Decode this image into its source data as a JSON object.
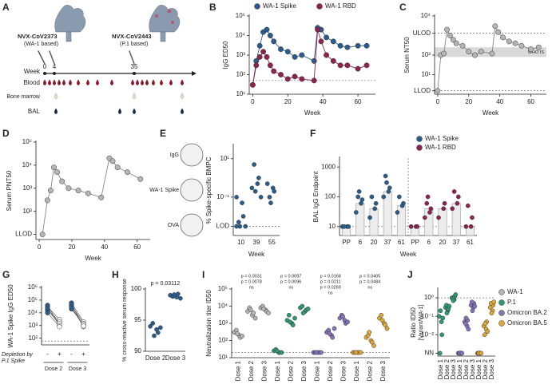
{
  "diagram": {
    "panel_label": "A",
    "vaccines": [
      {
        "name": "NVX-CoV2373",
        "basis": "(WA-1 based)"
      },
      {
        "name": "NVX-CoV2443",
        "basis": "(P.1 based)"
      }
    ],
    "timeline_label": "Week",
    "weeks": [
      "0",
      "4",
      "35"
    ],
    "samples": [
      "Blood",
      "Bone marrow",
      "BAL"
    ]
  },
  "chart_data": [
    {
      "type": "line",
      "panel_label": "B",
      "y_label": "IgG ED50",
      "x_label": "Week",
      "log_y": true,
      "xlim": [
        -2,
        70
      ],
      "xticks": [
        0,
        20,
        40,
        60
      ],
      "ylim": [
        10,
        100000
      ],
      "yticks": [
        {
          "value": 10,
          "label": "10¹"
        },
        {
          "value": 100,
          "label": "10²"
        },
        {
          "value": 1000,
          "label": "10³"
        },
        {
          "value": 10000,
          "label": "10⁴"
        },
        {
          "value": 100000,
          "label": "10⁵"
        }
      ],
      "reference_lines": [
        {
          "value": 50
        }
      ],
      "legend": "top",
      "x": [
        0,
        2,
        4,
        6,
        8,
        10,
        12,
        16,
        20,
        24,
        28,
        35,
        37,
        39,
        42,
        46,
        50,
        54,
        60,
        65
      ],
      "series": [
        {
          "name": "WA-1 Spike",
          "color": "#2b5d8c",
          "values": [
            30,
            500,
            3000,
            15000,
            20000,
            10000,
            5000,
            2000,
            1500,
            800,
            1000,
            500,
            25000,
            20000,
            8000,
            5000,
            3000,
            2500,
            3000,
            3000
          ]
        },
        {
          "name": "WA-1 RBD",
          "color": "#8e2350",
          "values": [
            30,
            300,
            800,
            1500,
            800,
            300,
            150,
            100,
            60,
            80,
            60,
            50,
            20000,
            5000,
            1000,
            500,
            300,
            300,
            200,
            300
          ]
        }
      ]
    },
    {
      "type": "line",
      "panel_label": "C",
      "y_label": "Serum NT50",
      "x_label": "Week",
      "log_y": true,
      "xlim": [
        -2,
        70
      ],
      "xticks": [
        0,
        20,
        40,
        60
      ],
      "ylim": [
        1,
        10000
      ],
      "yticks": [
        {
          "value": 1.5,
          "label": "LLOD"
        },
        {
          "value": 10,
          "label": "10¹"
        },
        {
          "value": 100,
          "label": "10²"
        },
        {
          "value": 1300,
          "label": "ULOD"
        },
        {
          "value": 10000,
          "label": "10⁴"
        }
      ],
      "reference_lines": [
        {
          "value": 1.5
        },
        {
          "value": 1300
        }
      ],
      "band": {
        "label": "WHO IS",
        "range": [
          80,
          250
        ]
      },
      "x": [
        0,
        2,
        4,
        6,
        8,
        10,
        12,
        16,
        20,
        24,
        28,
        35,
        37,
        39,
        42,
        46,
        50,
        54,
        60,
        65
      ],
      "series": [
        {
          "color": "#b5b5b5",
          "values": [
            1.5,
            100,
            120,
            2000,
            1000,
            600,
            400,
            300,
            150,
            100,
            150,
            120,
            3000,
            1500,
            800,
            500,
            400,
            300,
            200,
            250
          ]
        }
      ]
    },
    {
      "type": "line",
      "panel_label": "D",
      "y_label": "Serum PNT50",
      "x_label": "Week",
      "log_y": true,
      "xlim": [
        -2,
        68
      ],
      "xticks": [
        0,
        20,
        40,
        60
      ],
      "ylim": [
        6,
        100000
      ],
      "yticks": [
        {
          "value": 10,
          "label": "LLOD"
        },
        {
          "value": 100,
          "label": "10²"
        },
        {
          "value": 1000,
          "label": "10³"
        },
        {
          "value": 10000,
          "label": "10⁴"
        },
        {
          "value": 100000,
          "label": "10⁵"
        }
      ],
      "x": [
        2,
        5,
        7,
        9,
        11,
        14,
        18,
        24,
        30,
        38,
        43,
        45,
        48,
        54,
        62
      ],
      "series": [
        {
          "color": "#b5b5b5",
          "values": [
            10,
            300,
            800,
            8000,
            5000,
            2000,
            1000,
            800,
            600,
            400,
            20000,
            15000,
            8000,
            5000,
            2500
          ]
        }
      ]
    },
    {
      "type": "strip",
      "panel_label": "E",
      "y_label": "% Spike-specific BMPC",
      "x_label": "Week",
      "log_y": true,
      "ylim": [
        0.001,
        50
      ],
      "yticks": [
        {
          "value": 0.003,
          "label": "LOD"
        },
        {
          "value": 0.1,
          "label": "10⁻¹"
        },
        {
          "value": 10,
          "label": "10¹"
        }
      ],
      "reference_lines": [
        {
          "value": 0.003
        }
      ],
      "image_labels": [
        "IgG",
        "WA-1 Spike",
        "OVA"
      ],
      "color": "#2b5d8c",
      "categories": [
        "10",
        "39",
        "55"
      ],
      "values": [
        [
          0.1,
          0.05,
          0.01,
          0.005,
          0.003,
          0.003,
          0.003
        ],
        [
          0.3,
          0.5,
          1,
          5,
          0.2,
          0.1
        ],
        [
          0.5,
          0.3,
          0.2,
          0.1,
          0.05
        ]
      ]
    },
    {
      "type": "bar",
      "panel_label": "F",
      "y_label": "BAL IgG Endpoint",
      "x_label": "Week",
      "log_y": true,
      "ylim": [
        5,
        2000
      ],
      "yticks": [
        10,
        100,
        1000
      ],
      "reference_lines": [
        {
          "value": 10
        }
      ],
      "legend": "top-right",
      "categories": [
        "PP",
        "6",
        "20",
        "37",
        "61",
        "PP",
        "6",
        "20",
        "37",
        "61"
      ],
      "series": [
        {
          "name": "WA-1 Spike",
          "color": "#2b5d8c",
          "values": [
            10,
            60,
            40,
            150,
            50,
            null,
            null,
            null,
            null,
            null
          ],
          "points": [
            [
              10,
              10,
              10,
              10
            ],
            [
              30,
              60,
              80,
              100,
              150
            ],
            [
              20,
              40,
              60,
              100
            ],
            [
              100,
              150,
              200,
              500,
              300
            ],
            [
              30,
              50,
              60,
              100
            ],
            null,
            null,
            null,
            null,
            null
          ]
        },
        {
          "name": "WA-1 RBD",
          "color": "#8e2350",
          "values": [
            null,
            null,
            null,
            null,
            null,
            10,
            40,
            40,
            60,
            10
          ],
          "points": [
            null,
            null,
            null,
            null,
            null,
            [
              10,
              10,
              10
            ],
            [
              20,
              30,
              40,
              60,
              100
            ],
            [
              20,
              40,
              60
            ],
            [
              40,
              60,
              100,
              150
            ],
            [
              10,
              10,
              20,
              50
            ]
          ]
        }
      ]
    },
    {
      "type": "paired",
      "panel_label": "G",
      "y_label": "WA-1 Spike IgG ED50",
      "log_y": true,
      "ylim": [
        30,
        1000000
      ],
      "yticks": [
        {
          "value": 100,
          "label": "10²"
        },
        {
          "value": 1000,
          "label": "10³"
        },
        {
          "value": 10000,
          "label": "10⁴"
        },
        {
          "value": 100000,
          "label": "10⁵"
        },
        {
          "value": 1000000,
          "label": "10⁶"
        }
      ],
      "reference_lines": [
        {
          "value": 60
        }
      ],
      "categories": [
        "-",
        "+",
        "-",
        "+"
      ],
      "group_labels": [
        "Dose 2",
        "Dose 3"
      ],
      "row_label": [
        "Depletion by",
        "P.1 Spike"
      ],
      "color": "#2b5d8c",
      "post_color": "#ffffff",
      "values": [
        [
          30000,
          20000,
          15000,
          40000,
          25000,
          10000
        ],
        [
          3000,
          2000,
          1500,
          1000,
          1000,
          800
        ],
        [
          60000,
          40000,
          30000,
          20000,
          50000,
          25000
        ],
        [
          2000,
          1500,
          1000,
          1200,
          800,
          900
        ]
      ]
    },
    {
      "type": "strip",
      "panel_label": "H",
      "y_label": "% cross-reactive serum response",
      "ylim": [
        90,
        100
      ],
      "yticks": [
        90,
        95,
        100
      ],
      "annotations": [
        "p = 0.03112"
      ],
      "color": "#2b5d8c",
      "categories": [
        "Dose 2",
        "Dose 3"
      ],
      "values": [
        [
          94,
          93.5,
          93,
          94.5,
          92.5,
          93.8
        ],
        [
          99,
          98.7,
          99.2,
          98.8,
          99.1,
          98.5
        ]
      ]
    },
    {
      "type": "strip",
      "panel_label": "I",
      "y_label": "Neutralization titer ID50",
      "log_y": true,
      "ylim": [
        10,
        100000
      ],
      "yticks": [
        {
          "value": 10,
          "label": "10¹"
        },
        {
          "value": 100,
          "label": "10²"
        },
        {
          "value": 1000,
          "label": "10³"
        },
        {
          "value": 10000,
          "label": "10⁴"
        },
        {
          "value": 100000,
          "label": "10⁵"
        }
      ],
      "reference_lines": [
        {
          "value": 20
        }
      ],
      "rotate_x_labels": true,
      "legend": "right",
      "categories": [
        "Dose 1",
        "Dose 2",
        "Dose 3"
      ],
      "annotations": [
        [
          "p = 0.0031",
          "p = 0.0078",
          "ns"
        ],
        [
          "p = 0.0097",
          "p = 0.0096",
          "ns"
        ],
        [
          "p = 0.0168",
          "p = 0.0211",
          "p = 0.0269",
          "ns"
        ],
        [
          "p = 0.0405",
          "p = 0.0484",
          "ns"
        ]
      ],
      "series": [
        {
          "name": "WA-1",
          "color": "#b5b5b5",
          "values": [
            [
              300,
              200,
              150,
              400,
              250,
              180
            ],
            [
              5000,
              3000,
              4000,
              8000,
              6000,
              2000
            ],
            [
              8000,
              6000,
              5000,
              10000,
              7000,
              4000
            ]
          ]
        },
        {
          "name": "P.1",
          "color": "#2e9a72",
          "values": [
            [
              25,
              20,
              20,
              30,
              25,
              20
            ],
            [
              1500,
              1000,
              800,
              3000,
              1200,
              2000
            ],
            [
              8000,
              5000,
              6000,
              10000,
              4000,
              7000
            ]
          ]
        },
        {
          "name": "Omicron BA.2",
          "color": "#8672b8",
          "values": [
            [
              20,
              20,
              20,
              20,
              20,
              20
            ],
            [
              300,
              200,
              150,
              400,
              250,
              500
            ],
            [
              2000,
              1500,
              1000,
              3000,
              2500,
              1200
            ]
          ]
        },
        {
          "name": "Omicron BA.5",
          "color": "#e0a838",
          "values": [
            [
              20,
              20,
              20,
              20,
              20,
              20
            ],
            [
              150,
              100,
              80,
              200,
              300,
              50
            ],
            [
              2000,
              1000,
              800,
              3000,
              1500,
              500
            ]
          ]
        }
      ]
    },
    {
      "type": "strip",
      "panel_label": "J",
      "y_label": "Ratio ID50",
      "y_label_sub": "[Variant/WA-1]",
      "log_y": true,
      "ylim": [
        0.0007,
        3
      ],
      "yticks": [
        {
          "value": 0.001,
          "label": "NN"
        },
        {
          "value": 0.01,
          "label": "10⁻²"
        },
        {
          "value": 0.1,
          "label": "10⁻¹"
        },
        {
          "value": 1,
          "label": "10⁰"
        }
      ],
      "reference_lines": [
        {
          "value": 1
        }
      ],
      "rotate_x_labels": true,
      "categories": [
        "Dose 1",
        "Dose 2",
        "Dose 3"
      ],
      "series": [
        {
          "color": "#2e9a72",
          "values": [
            [
              0.1,
              0.05,
              0.01,
              0.001,
              0.2,
              0.08
            ],
            [
              0.3,
              0.2,
              0.25,
              0.4,
              0.15,
              0.35
            ],
            [
              1,
              0.8,
              1.2,
              0.9,
              0.7,
              1.5
            ]
          ]
        },
        {
          "color": "#8672b8",
          "values": [
            [
              0.001,
              0.001,
              0.001,
              0.001,
              0.001,
              0.001
            ],
            [
              0.05,
              0.03,
              0.06,
              0.04,
              0.08,
              0.02
            ],
            [
              0.4,
              0.3,
              0.5,
              0.6,
              0.2,
              0.35
            ]
          ]
        },
        {
          "color": "#e0a838",
          "values": [
            [
              0.001,
              0.001,
              0.001,
              0.001,
              0.001,
              0.001
            ],
            [
              0.03,
              0.02,
              0.05,
              0.01,
              0.04,
              0.015
            ],
            [
              0.3,
              0.2,
              0.4,
              0.5,
              0.15,
              0.6
            ]
          ]
        }
      ]
    }
  ]
}
